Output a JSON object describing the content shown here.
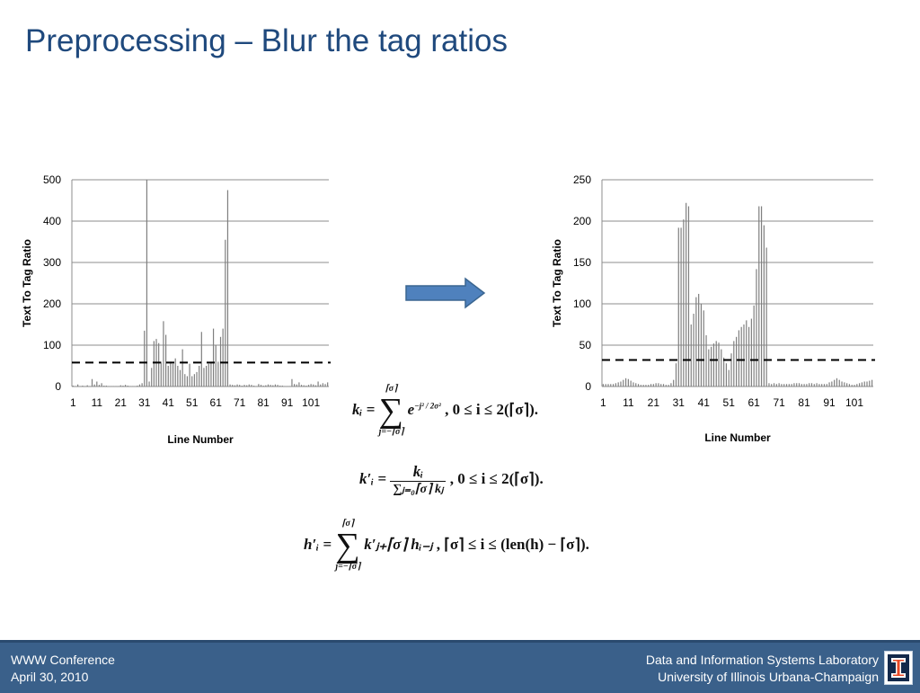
{
  "slide": {
    "title": "Preprocessing – Blur the tag ratios"
  },
  "footer": {
    "conference": "WWW Conference",
    "date": "April 30, 2010",
    "lab": "Data and Information Systems Laboratory",
    "university": "University of Illinois Urbana-Champaign"
  },
  "logo": {
    "icon": "illinois-block-i-icon"
  },
  "arrow": {
    "icon": "arrow-right-icon",
    "color": "#4f81bd"
  },
  "formulas": {
    "k_lhs": "kᵢ =",
    "k_sum_top": "⌈σ⌉",
    "k_sum_bottom": "j=−⌈σ⌉",
    "k_exp": "e",
    "k_exp_sup": "−j² / 2σ²",
    "k_cond": ", 0 ≤ i ≤ 2(⌈σ⌉).",
    "kp_lhs": "k′ᵢ =",
    "kp_num": "kᵢ",
    "kp_den": "∑ⱼ₌₀⌈σ⌉ kⱼ",
    "kp_cond": ", 0 ≤ i ≤ 2(⌈σ⌉).",
    "h_lhs": "h′ᵢ =",
    "h_sum_top": "⌈σ⌉",
    "h_sum_bottom": "j=−⌈σ⌉",
    "h_term": "k′ⱼ₊⌈σ⌉ hᵢ₋ⱼ",
    "h_cond": ", ⌈σ⌉ ≤ i ≤ (len(h) − ⌈σ⌉)."
  },
  "chart_data": [
    {
      "type": "bar",
      "title": "",
      "xlabel": "Line Number",
      "ylabel": "Text To Tag Ratio",
      "ylim": [
        0,
        500
      ],
      "yticks": [
        0,
        100,
        200,
        300,
        400,
        500
      ],
      "xtick_labels": [
        "1",
        "11",
        "21",
        "31",
        "41",
        "51",
        "61",
        "71",
        "81",
        "91",
        "101"
      ],
      "grid": true,
      "bar_color": "#7f7f7f",
      "threshold": 58,
      "x": [
        1,
        2,
        3,
        4,
        5,
        6,
        7,
        8,
        9,
        10,
        11,
        12,
        13,
        14,
        15,
        16,
        17,
        18,
        19,
        20,
        21,
        22,
        23,
        24,
        25,
        26,
        27,
        28,
        29,
        30,
        31,
        32,
        33,
        34,
        35,
        36,
        37,
        38,
        39,
        40,
        41,
        42,
        43,
        44,
        45,
        46,
        47,
        48,
        49,
        50,
        51,
        52,
        53,
        54,
        55,
        56,
        57,
        58,
        59,
        60,
        61,
        62,
        63,
        64,
        65,
        66,
        67,
        68,
        69,
        70,
        71,
        72,
        73,
        74,
        75,
        76,
        77,
        78,
        79,
        80,
        81,
        82,
        83,
        84,
        85,
        86,
        87,
        88,
        89,
        90,
        91,
        92,
        93,
        94,
        95,
        96,
        97,
        98,
        99,
        100,
        101,
        102,
        103,
        104,
        105,
        106,
        107,
        108
      ],
      "values": [
        2,
        1,
        5,
        1,
        2,
        1,
        3,
        1,
        18,
        5,
        12,
        4,
        8,
        2,
        2,
        1,
        1,
        1,
        1,
        1,
        3,
        2,
        4,
        2,
        1,
        1,
        1,
        2,
        5,
        8,
        135,
        500,
        12,
        45,
        110,
        115,
        105,
        60,
        158,
        125,
        50,
        60,
        55,
        68,
        50,
        40,
        90,
        30,
        25,
        55,
        25,
        30,
        35,
        50,
        132,
        45,
        50,
        55,
        60,
        140,
        100,
        60,
        120,
        140,
        355,
        475,
        5,
        4,
        3,
        5,
        4,
        2,
        4,
        3,
        5,
        4,
        2,
        1,
        6,
        4,
        2,
        3,
        5,
        4,
        3,
        5,
        4,
        2,
        2,
        1,
        1,
        1,
        18,
        6,
        5,
        10,
        4,
        3,
        2,
        4,
        6,
        5,
        3,
        12,
        5,
        8,
        6,
        10
      ]
    },
    {
      "type": "bar",
      "title": "",
      "xlabel": "Line Number",
      "ylabel": "Text To Tag Ratio",
      "ylim": [
        0,
        250
      ],
      "yticks": [
        0,
        50,
        100,
        150,
        200,
        250
      ],
      "xtick_labels": [
        "1",
        "11",
        "21",
        "31",
        "41",
        "51",
        "61",
        "71",
        "81",
        "91",
        "101"
      ],
      "grid": true,
      "bar_color": "#7f7f7f",
      "threshold": 32,
      "x": [
        1,
        2,
        3,
        4,
        5,
        6,
        7,
        8,
        9,
        10,
        11,
        12,
        13,
        14,
        15,
        16,
        17,
        18,
        19,
        20,
        21,
        22,
        23,
        24,
        25,
        26,
        27,
        28,
        29,
        30,
        31,
        32,
        33,
        34,
        35,
        36,
        37,
        38,
        39,
        40,
        41,
        42,
        43,
        44,
        45,
        46,
        47,
        48,
        49,
        50,
        51,
        52,
        53,
        54,
        55,
        56,
        57,
        58,
        59,
        60,
        61,
        62,
        63,
        64,
        65,
        66,
        67,
        68,
        69,
        70,
        71,
        72,
        73,
        74,
        75,
        76,
        77,
        78,
        79,
        80,
        81,
        82,
        83,
        84,
        85,
        86,
        87,
        88,
        89,
        90,
        91,
        92,
        93,
        94,
        95,
        96,
        97,
        98,
        99,
        100,
        101,
        102,
        103,
        104,
        105,
        106,
        107,
        108
      ],
      "values": [
        3,
        3,
        3,
        3,
        3,
        4,
        5,
        6,
        8,
        10,
        9,
        7,
        5,
        4,
        3,
        2,
        2,
        2,
        2,
        3,
        3,
        4,
        4,
        3,
        3,
        2,
        2,
        4,
        8,
        28,
        192,
        192,
        202,
        222,
        218,
        75,
        88,
        108,
        112,
        100,
        92,
        62,
        45,
        48,
        52,
        55,
        53,
        45,
        35,
        28,
        20,
        40,
        55,
        60,
        68,
        72,
        75,
        80,
        72,
        82,
        98,
        142,
        218,
        218,
        195,
        168,
        4,
        3,
        4,
        3,
        4,
        3,
        3,
        3,
        3,
        3,
        4,
        4,
        4,
        3,
        3,
        3,
        4,
        4,
        3,
        4,
        3,
        3,
        3,
        3,
        5,
        6,
        8,
        10,
        8,
        6,
        5,
        4,
        3,
        2,
        2,
        3,
        4,
        5,
        6,
        6,
        7,
        8
      ]
    }
  ]
}
